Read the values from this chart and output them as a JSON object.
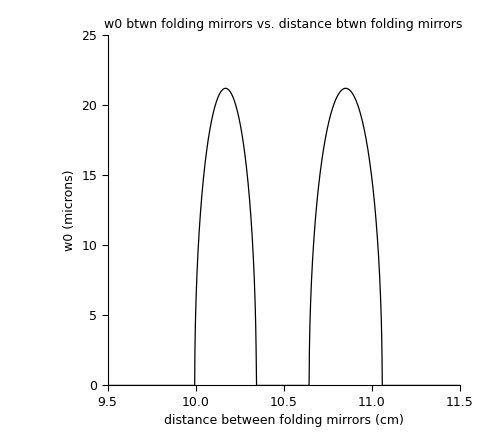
{
  "title": "w0 btwn folding mirrors vs. distance btwn folding mirrors",
  "xlabel": "distance between folding mirrors (cm)",
  "ylabel": "w0 (microns)",
  "xlim": [
    9.5,
    11.5
  ],
  "ylim": [
    0,
    25
  ],
  "xticks": [
    9.5,
    10.0,
    10.5,
    11.0,
    11.5
  ],
  "yticks": [
    0,
    5,
    10,
    15,
    20,
    25
  ],
  "line_color": "#000000",
  "background_color": "#ffffff",
  "peak_height": 21.2,
  "x_lo1": 9.995,
  "x_hi1": 10.345,
  "x_lo2": 10.645,
  "x_hi2": 11.06,
  "x_start": 9.5,
  "x_end": 11.5,
  "n_points": 3000,
  "title_fontsize": 9,
  "label_fontsize": 9,
  "tick_fontsize": 9,
  "linewidth": 0.9
}
